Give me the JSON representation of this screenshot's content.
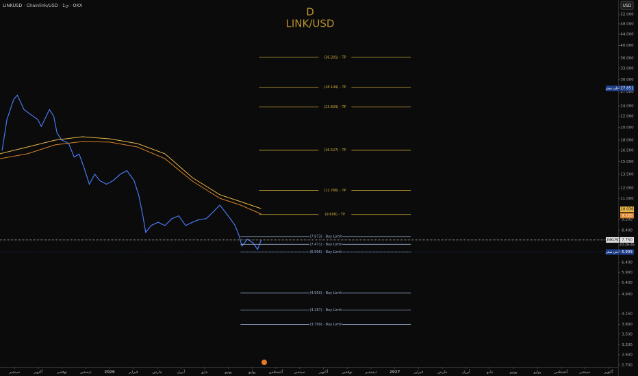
{
  "header": {
    "symbol_info": "LINKUSD · Chainlink/USD · 1ي · OKX",
    "currency_button": "USD"
  },
  "chart_data": {
    "type": "line",
    "title": "D",
    "subtitle": "LINK/USD",
    "log_scale": true,
    "xlim": [
      -0.61,
      25.4
    ],
    "ylim": [
      2.65,
      58.7
    ],
    "xticks": [
      {
        "value": 0,
        "label": "سبتمبر"
      },
      {
        "value": 1,
        "label": "أكتوبر"
      },
      {
        "value": 2,
        "label": "نوفمبر"
      },
      {
        "value": 3,
        "label": "ديسمبر"
      },
      {
        "value": 4,
        "label": "2026"
      },
      {
        "value": 5,
        "label": "فبراير"
      },
      {
        "value": 6,
        "label": "مارس"
      },
      {
        "value": 7,
        "label": "أبريل"
      },
      {
        "value": 8,
        "label": "مايو"
      },
      {
        "value": 9,
        "label": "يونيو"
      },
      {
        "value": 10,
        "label": "يوليو"
      },
      {
        "value": 11,
        "label": "أغسطس"
      },
      {
        "value": 12,
        "label": "سبتمبر"
      },
      {
        "value": 13,
        "label": "أكتوبر"
      },
      {
        "value": 14,
        "label": "نوفمبر"
      },
      {
        "value": 15,
        "label": "ديسمبر"
      },
      {
        "value": 16,
        "label": "2027"
      },
      {
        "value": 17,
        "label": "فبراير"
      },
      {
        "value": 18,
        "label": "مارس"
      },
      {
        "value": 19,
        "label": "أبريل"
      },
      {
        "value": 20,
        "label": "مايو"
      },
      {
        "value": 21,
        "label": "يونيو"
      },
      {
        "value": 22,
        "label": "يوليو"
      },
      {
        "value": 23,
        "label": "أغسطس"
      },
      {
        "value": 24,
        "label": "سبتمبر"
      },
      {
        "value": 25,
        "label": "أكتوبر"
      }
    ],
    "yticks": [
      {
        "value": 52,
        "label": "52.000"
      },
      {
        "value": 48,
        "label": "48.000"
      },
      {
        "value": 44,
        "label": "44.000"
      },
      {
        "value": 40,
        "label": "40.000"
      },
      {
        "value": 36,
        "label": "36.000"
      },
      {
        "value": 33,
        "label": "33.000"
      },
      {
        "value": 30,
        "label": "30.000"
      },
      {
        "value": 27,
        "label": "27.000"
      },
      {
        "value": 24,
        "label": "24.000"
      },
      {
        "value": 22,
        "label": "22.000"
      },
      {
        "value": 20,
        "label": "20.000"
      },
      {
        "value": 18,
        "label": "18.000"
      },
      {
        "value": 16.5,
        "label": "16.500"
      },
      {
        "value": 15,
        "label": "15.000"
      },
      {
        "value": 13.5,
        "label": "13.500"
      },
      {
        "value": 12,
        "label": "12.000"
      },
      {
        "value": 11,
        "label": "11.000"
      },
      {
        "value": 9.2,
        "label": "9.200"
      },
      {
        "value": 8.4,
        "label": "8.400"
      },
      {
        "value": 6.4,
        "label": "6.400"
      },
      {
        "value": 5.9,
        "label": "5.900"
      },
      {
        "value": 5.4,
        "label": "5.400"
      },
      {
        "value": 4.9,
        "label": "4.900"
      },
      {
        "value": 4.15,
        "label": "4.150"
      },
      {
        "value": 3.8,
        "label": "3.800"
      },
      {
        "value": 3.5,
        "label": "3.500"
      },
      {
        "value": 3.2,
        "label": "3.200"
      },
      {
        "value": 2.94,
        "label": "2.940"
      },
      {
        "value": 2.7,
        "label": "2.700"
      }
    ],
    "series": [
      {
        "color": "#4a78f0",
        "x": [
          -0.52,
          -0.32,
          -0.03,
          0.12,
          0.4,
          0.69,
          0.98,
          1.13,
          1.47,
          1.65,
          1.79,
          1.99,
          2.28,
          2.51,
          2.72,
          2.92,
          3.15,
          3.38,
          3.58,
          3.87,
          4.16,
          4.45,
          4.73,
          5.03,
          5.23,
          5.4,
          5.52,
          5.75,
          6.04,
          6.33,
          6.62,
          6.91,
          7.2,
          7.49,
          7.77,
          8.06,
          8.35,
          8.64,
          8.87,
          9.08,
          9.28,
          9.45,
          9.57,
          9.8,
          10.03,
          10.23,
          10.38
        ],
        "values": [
          16.5,
          21.4,
          25.4,
          26.3,
          23.3,
          22.3,
          21.4,
          20.2,
          23.3,
          22.0,
          19.1,
          18.0,
          17.5,
          15.6,
          16.0,
          14.3,
          12.4,
          13.5,
          12.8,
          12.4,
          12.8,
          13.5,
          13.9,
          12.8,
          11.3,
          9.5,
          8.26,
          8.75,
          9.0,
          8.75,
          9.27,
          9.5,
          8.75,
          9.0,
          9.2,
          9.27,
          9.8,
          10.4,
          9.8,
          9.27,
          8.75,
          8.03,
          7.36,
          7.8,
          7.57,
          7.15,
          7.75
        ]
      },
      {
        "color": "#e8b84a",
        "x": [
          -0.61,
          0.55,
          1.71,
          2.86,
          4.02,
          5.17,
          6.33,
          7.49,
          8.64,
          9.51,
          10.38
        ],
        "values": [
          16.04,
          16.98,
          17.99,
          18.52,
          18.19,
          17.48,
          16.04,
          13.1,
          11.35,
          10.71,
          10.1
        ]
      },
      {
        "color": "#d9822b",
        "x": [
          -0.61,
          0.55,
          1.71,
          2.86,
          4.02,
          5.17,
          6.33,
          7.49,
          8.64,
          9.51,
          10.38
        ],
        "values": [
          15.39,
          16.04,
          17.29,
          17.78,
          17.69,
          16.98,
          15.39,
          12.73,
          11.02,
          10.4,
          9.65
        ]
      }
    ],
    "levels": [
      {
        "value": 36.201,
        "label": "(36.201) - TP",
        "color": "#d4af37",
        "x": [
          10.29,
          16.68
        ]
      },
      {
        "value": 28.149,
        "label": "(28.149) - TP",
        "color": "#d4af37",
        "x": [
          10.29,
          16.68
        ]
      },
      {
        "value": 23.829,
        "label": "(23.829) - TP",
        "color": "#d4af37",
        "x": [
          10.29,
          16.68
        ]
      },
      {
        "value": 16.527,
        "label": "(16.527) - TP",
        "color": "#d4af37",
        "x": [
          10.29,
          16.68
        ]
      },
      {
        "value": 11.766,
        "label": "(11.766) - TP",
        "color": "#d4af37",
        "x": [
          10.29,
          16.68
        ]
      },
      {
        "value": 9.608,
        "label": "(9.608) - TP",
        "color": "#d4af37",
        "x": [
          10.29,
          16.68
        ]
      },
      {
        "value": 7.973,
        "label": "(7.973) - Buy Limit",
        "color": "#9fb4d8",
        "x": [
          9.51,
          16.68
        ]
      },
      {
        "value": 7.471,
        "label": "(7.471) - Buy Limit",
        "color": "#9fb4d8",
        "x": [
          9.51,
          16.68
        ]
      },
      {
        "value": 6.996,
        "label": "(6.996) - Buy Limit",
        "color": "#9fb4d8",
        "x": [
          9.51,
          16.68
        ]
      },
      {
        "value": 4.95,
        "label": "(4.950) - Buy Limit",
        "color": "#9fb4d8",
        "x": [
          9.51,
          16.68
        ]
      },
      {
        "value": 4.287,
        "label": "(4.287) - Buy Limit",
        "color": "#9fb4d8",
        "x": [
          9.51,
          16.68
        ]
      },
      {
        "value": 3.799,
        "label": "(3.799) - Buy Limit",
        "color": "#9fb4d8",
        "x": [
          9.51,
          16.68
        ]
      }
    ],
    "markers": [
      {
        "label": "أعلى سعر",
        "value": 27.851,
        "color": "#1e3f8a"
      },
      {
        "value": 10.036,
        "color": "#e8b84a"
      },
      {
        "value": {
          "value": 9.52,
          "label": "9.520"
        },
        "color": "#d9822b"
      },
      {
        "label": "LINKUSD",
        "value": {
          "value": 7.75,
          "label": "7.750"
        },
        "color": "#e6e6e6",
        "line": true
      },
      {
        "label": "أدنى سعر",
        "value": 6.999,
        "color": "#1e3f8a",
        "line": true
      }
    ],
    "countdown": "20:26:45"
  }
}
